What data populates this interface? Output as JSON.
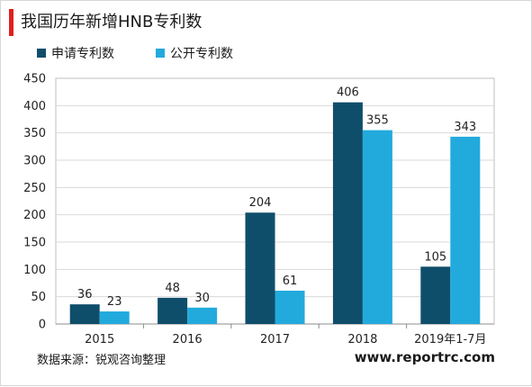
{
  "title": "我国历年新增HNB专利数",
  "colors": {
    "accent": "#e0201c",
    "series_dark": "#0f4e6b",
    "series_light": "#22aadd",
    "grid": "#d9d9d9",
    "axis": "#bfbfbf"
  },
  "chart_data": {
    "type": "bar",
    "categories": [
      "2015",
      "2016",
      "2017",
      "2018",
      "2019年1-7月"
    ],
    "series": [
      {
        "name": "申请专利数",
        "values": [
          36,
          48,
          204,
          406,
          105
        ]
      },
      {
        "name": "公开专利数",
        "values": [
          23,
          30,
          61,
          355,
          343
        ]
      }
    ],
    "ylim": [
      0,
      450
    ],
    "yticks": [
      0,
      50,
      100,
      150,
      200,
      250,
      300,
      350,
      400,
      450
    ],
    "grid": true,
    "legend_position": "top-left",
    "data_labels": true
  },
  "footer": {
    "source": "数据来源：锐观咨询整理",
    "website": "www.reportrc.com"
  }
}
